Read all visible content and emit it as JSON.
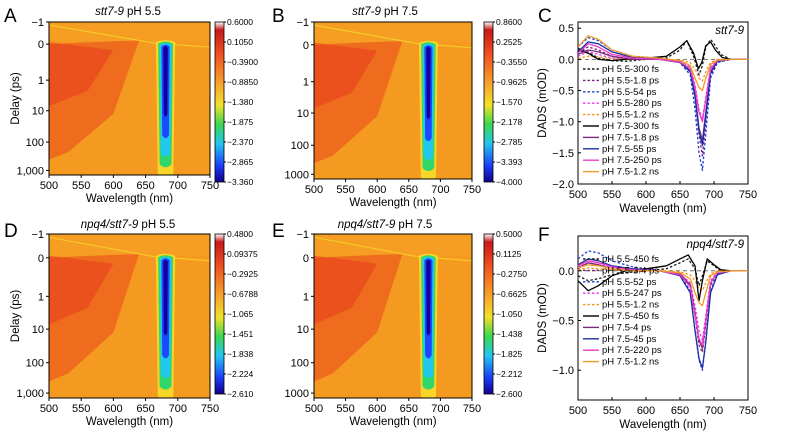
{
  "colors": {
    "hm_background": "#f59a20",
    "hm_red": "#e8361c",
    "hm_orange_mid": "#f7a72a",
    "hm_yellow": "#f5dd2a",
    "hm_green": "#30d66a",
    "hm_cyan": "#22c8ee",
    "hm_blue": "#1c48ff",
    "hm_navy": "#13009a"
  },
  "chart_data": [
    {
      "panel": "A",
      "type": "heatmap",
      "title_italic": "stt7-9",
      "title_rest": " pH 5.5",
      "xlabel": "Wavelength (nm)",
      "ylabel": "Delay (ps)",
      "x_ticks": [
        "500",
        "550",
        "600",
        "650",
        "700",
        "750"
      ],
      "y_ticks": [
        "−1",
        "0",
        "1",
        "10",
        "100",
        "1,000"
      ],
      "xlim": [
        500,
        750
      ],
      "ylim_ps": [
        -1,
        1900
      ],
      "colorbar_ticks": [
        "0.6000",
        "0.1050",
        "−0.3900",
        "−0.8850",
        "−1.380",
        "−1.875",
        "−2.370",
        "−2.865",
        "−3.360"
      ],
      "colorbar_range": [
        -3.36,
        0.6
      ]
    },
    {
      "panel": "B",
      "type": "heatmap",
      "title_italic": "stt7-9",
      "title_rest": " pH 7.5",
      "xlabel": "Wavelength (nm)",
      "ylabel": "",
      "x_ticks": [
        "500",
        "550",
        "600",
        "650",
        "700",
        "750"
      ],
      "y_ticks": [
        "−1",
        "0",
        "1",
        "10",
        "100",
        "1000"
      ],
      "xlim": [
        500,
        750
      ],
      "ylim_ps": [
        -1,
        1900
      ],
      "colorbar_ticks": [
        "0.8600",
        "0.2525",
        "−0.3550",
        "−0.9625",
        "−1.570",
        "−2.178",
        "−2.785",
        "−3.393",
        "−4.000"
      ],
      "colorbar_range": [
        -4.0,
        0.86
      ]
    },
    {
      "panel": "C",
      "type": "line",
      "title": "stt7-9",
      "xlabel": "Wavelength (nm)",
      "ylabel": "DADS (mOD)",
      "x_ticks": [
        "500",
        "550",
        "600",
        "650",
        "700",
        "750"
      ],
      "y_ticks": [
        "0.5",
        "0.0",
        "−0.5",
        "−1.0",
        "−1.5",
        "−2.0"
      ],
      "xlim": [
        500,
        750
      ],
      "ylim": [
        -2.0,
        0.6
      ],
      "series": [
        {
          "name": "pH 5.5-300 fs",
          "color": "#1a1a1a",
          "dashed": true,
          "x": [
            500,
            515,
            530,
            550,
            570,
            600,
            630,
            650,
            660,
            670,
            678,
            683,
            688,
            695,
            700,
            710,
            725,
            750
          ],
          "y": [
            0.18,
            0.12,
            0.02,
            -0.02,
            -0.03,
            0.0,
            0.02,
            0.15,
            0.3,
            0.05,
            -0.25,
            -0.1,
            0.2,
            0.32,
            0.25,
            0.08,
            0.0,
            0.0
          ]
        },
        {
          "name": "pH 5.5-1.8 ps",
          "color": "#7a1f7a",
          "dashed": true,
          "x": [
            500,
            515,
            530,
            550,
            580,
            620,
            650,
            665,
            672,
            678,
            683,
            688,
            695,
            705,
            725,
            750
          ],
          "y": [
            0.12,
            0.2,
            0.15,
            0.05,
            0.0,
            0.0,
            -0.05,
            -0.2,
            -0.6,
            -1.2,
            -1.55,
            -1.0,
            -0.25,
            -0.03,
            0.0,
            0.0
          ]
        },
        {
          "name": "pH 5.5-54 ps",
          "color": "#1f3fd4",
          "dashed": true,
          "x": [
            500,
            515,
            530,
            550,
            580,
            620,
            650,
            665,
            672,
            678,
            683,
            688,
            695,
            705,
            725,
            750
          ],
          "y": [
            0.2,
            0.35,
            0.3,
            0.15,
            0.05,
            0.02,
            -0.05,
            -0.25,
            -0.8,
            -1.5,
            -1.78,
            -1.2,
            -0.3,
            -0.05,
            0.0,
            0.0
          ]
        },
        {
          "name": "pH 5.5-280 ps",
          "color": "#e83ee0",
          "dashed": true,
          "x": [
            500,
            515,
            530,
            550,
            580,
            620,
            650,
            665,
            672,
            678,
            683,
            688,
            695,
            705,
            725,
            750
          ],
          "y": [
            0.05,
            0.12,
            0.08,
            0.02,
            0.0,
            0.0,
            -0.03,
            -0.12,
            -0.4,
            -0.8,
            -0.95,
            -0.6,
            -0.12,
            -0.02,
            0.0,
            0.0
          ]
        },
        {
          "name": "pH 5.5-1.2 ns",
          "color": "#f0951c",
          "dashed": true,
          "x": [
            500,
            515,
            530,
            550,
            580,
            620,
            650,
            665,
            672,
            678,
            683,
            688,
            695,
            705,
            725,
            750
          ],
          "y": [
            0.02,
            0.05,
            0.04,
            0.01,
            0.0,
            0.0,
            -0.01,
            -0.05,
            -0.15,
            -0.3,
            -0.35,
            -0.2,
            -0.05,
            0.0,
            0.0,
            0.0
          ]
        },
        {
          "name": "pH 7.5-300 fs",
          "color": "#000000",
          "dashed": false,
          "x": [
            500,
            515,
            530,
            550,
            570,
            600,
            630,
            650,
            660,
            670,
            677,
            682,
            688,
            695,
            702,
            712,
            725,
            750
          ],
          "y": [
            0.15,
            0.1,
            0.0,
            -0.02,
            0.0,
            0.02,
            0.05,
            0.2,
            0.3,
            0.1,
            -0.15,
            -0.05,
            0.22,
            0.28,
            0.15,
            0.03,
            0.0,
            0.0
          ]
        },
        {
          "name": "pH 7.5-1.8 ps",
          "color": "#7b2a7f",
          "dashed": false,
          "x": [
            500,
            515,
            530,
            550,
            580,
            620,
            650,
            665,
            672,
            678,
            683,
            688,
            695,
            705,
            725,
            750
          ],
          "y": [
            0.08,
            0.15,
            0.12,
            0.05,
            0.0,
            0.0,
            -0.05,
            -0.18,
            -0.55,
            -1.1,
            -1.3,
            -0.85,
            -0.2,
            -0.02,
            0.0,
            0.0
          ]
        },
        {
          "name": "pH 7.5-55 ps",
          "color": "#1a2fa8",
          "dashed": false,
          "x": [
            500,
            515,
            530,
            550,
            580,
            620,
            650,
            665,
            672,
            678,
            683,
            688,
            695,
            705,
            725,
            750
          ],
          "y": [
            0.12,
            0.28,
            0.25,
            0.12,
            0.03,
            0.0,
            -0.04,
            -0.2,
            -0.6,
            -1.15,
            -1.38,
            -0.9,
            -0.22,
            -0.03,
            0.0,
            0.0
          ]
        },
        {
          "name": "pH 7.5-250 ps",
          "color": "#f03cc8",
          "dashed": false,
          "x": [
            500,
            515,
            530,
            550,
            580,
            620,
            650,
            665,
            672,
            678,
            683,
            688,
            695,
            705,
            725,
            750
          ],
          "y": [
            0.1,
            0.25,
            0.2,
            0.08,
            0.02,
            0.0,
            -0.04,
            -0.15,
            -0.45,
            -0.85,
            -1.0,
            -0.65,
            -0.15,
            -0.02,
            0.0,
            0.0
          ]
        },
        {
          "name": "pH 7.5-1.2 ns",
          "color": "#f09a28",
          "dashed": false,
          "x": [
            500,
            515,
            530,
            550,
            580,
            620,
            650,
            665,
            672,
            678,
            683,
            688,
            695,
            705,
            725,
            750
          ],
          "y": [
            0.2,
            0.38,
            0.32,
            0.15,
            0.05,
            0.02,
            -0.02,
            -0.1,
            -0.3,
            -0.45,
            -0.5,
            -0.3,
            -0.08,
            -0.01,
            0.0,
            0.0
          ]
        }
      ]
    },
    {
      "panel": "D",
      "type": "heatmap",
      "title_italic": "npq4/stt7-9",
      "title_rest": " pH 5.5",
      "xlabel": "Wavelength (nm)",
      "ylabel": "Delay (ps)",
      "x_ticks": [
        "500",
        "550",
        "600",
        "650",
        "700",
        "750"
      ],
      "y_ticks": [
        "−1",
        "0",
        "1",
        "10",
        "100",
        "1,000"
      ],
      "xlim": [
        500,
        750
      ],
      "ylim_ps": [
        -1,
        1900
      ],
      "colorbar_ticks": [
        "0.4800",
        "0.09375",
        "−0.2925",
        "−0.6788",
        "−1.065",
        "−1.451",
        "−1.838",
        "−2.224",
        "−2.610"
      ],
      "colorbar_range": [
        -2.61,
        0.48
      ]
    },
    {
      "panel": "E",
      "type": "heatmap",
      "title_italic": "npq4/stt7-9",
      "title_rest": " pH 7.5",
      "xlabel": "Wavelength (nm)",
      "ylabel": "",
      "x_ticks": [
        "500",
        "550",
        "600",
        "650",
        "700",
        "750"
      ],
      "y_ticks": [
        "−1",
        "0",
        "1",
        "10",
        "100",
        "1000"
      ],
      "xlim": [
        500,
        750
      ],
      "ylim_ps": [
        -1,
        1900
      ],
      "colorbar_ticks": [
        "0.5000",
        "0.1125",
        "−0.2750",
        "−0.6625",
        "−1.050",
        "−1.438",
        "−1.825",
        "−2.212",
        "−2.600"
      ],
      "colorbar_range": [
        -2.6,
        0.5
      ]
    },
    {
      "panel": "F",
      "type": "line",
      "title": "npq4/stt7-9",
      "xlabel": "Wavelength (nm)",
      "ylabel": "DADS (mOD)",
      "x_ticks": [
        "500",
        "550",
        "600",
        "650",
        "700",
        "750"
      ],
      "y_ticks": [
        "0.0",
        "−0.5",
        "−1.0"
      ],
      "xlim": [
        500,
        750
      ],
      "ylim": [
        -1.3,
        0.35
      ],
      "series": [
        {
          "name": "pH 5.5-450 fs",
          "color": "#1a1a1a",
          "dashed": true,
          "x": [
            500,
            515,
            530,
            550,
            570,
            600,
            630,
            650,
            662,
            672,
            678,
            683,
            690,
            700,
            710,
            725,
            750
          ],
          "y": [
            -0.05,
            -0.1,
            -0.08,
            -0.04,
            -0.02,
            0.0,
            0.02,
            0.08,
            0.12,
            0.02,
            -0.15,
            -0.05,
            0.1,
            0.05,
            0.0,
            0.0,
            0.0
          ]
        },
        {
          "name": "pH 5.5-3.4 ps",
          "color": "#7a1f7a",
          "dashed": true,
          "x": [
            500,
            515,
            530,
            550,
            580,
            620,
            650,
            665,
            672,
            678,
            683,
            688,
            695,
            705,
            725,
            750
          ],
          "y": [
            0.02,
            0.08,
            0.06,
            0.02,
            0.0,
            0.0,
            -0.03,
            -0.15,
            -0.45,
            -0.75,
            -0.82,
            -0.55,
            -0.15,
            -0.02,
            0.0,
            0.0
          ]
        },
        {
          "name": "pH 5.5-52 ps",
          "color": "#1f3fd4",
          "dashed": true,
          "x": [
            500,
            515,
            530,
            550,
            580,
            620,
            650,
            665,
            672,
            678,
            683,
            688,
            695,
            705,
            725,
            750
          ],
          "y": [
            0.12,
            0.2,
            0.18,
            0.1,
            0.04,
            0.0,
            -0.04,
            -0.2,
            -0.6,
            -0.9,
            -1.0,
            -0.7,
            -0.2,
            -0.03,
            0.0,
            0.0
          ]
        },
        {
          "name": "pH 5.5-247 ps",
          "color": "#e83ee0",
          "dashed": true,
          "x": [
            500,
            515,
            530,
            550,
            580,
            620,
            650,
            665,
            672,
            678,
            683,
            688,
            695,
            705,
            725,
            750
          ],
          "y": [
            0.04,
            0.1,
            0.08,
            0.03,
            0.0,
            0.0,
            -0.03,
            -0.12,
            -0.35,
            -0.6,
            -0.7,
            -0.45,
            -0.1,
            -0.01,
            0.0,
            0.0
          ]
        },
        {
          "name": "pH 5.5-1.2 ns",
          "color": "#f0951c",
          "dashed": true,
          "x": [
            500,
            515,
            530,
            550,
            580,
            620,
            650,
            665,
            672,
            678,
            683,
            688,
            695,
            705,
            725,
            750
          ],
          "y": [
            0.01,
            0.03,
            0.02,
            0.01,
            0.0,
            0.0,
            -0.01,
            -0.04,
            -0.1,
            -0.18,
            -0.2,
            -0.12,
            -0.03,
            0.0,
            0.0,
            0.0
          ]
        },
        {
          "name": "pH 7.5-450 fs",
          "color": "#000000",
          "dashed": false,
          "x": [
            500,
            515,
            530,
            550,
            570,
            600,
            630,
            650,
            662,
            672,
            678,
            683,
            690,
            700,
            710,
            725,
            750
          ],
          "y": [
            -0.1,
            -0.2,
            -0.15,
            -0.05,
            0.0,
            0.02,
            0.05,
            0.12,
            0.16,
            0.05,
            -0.3,
            -0.1,
            0.12,
            0.06,
            0.01,
            0.0,
            0.0
          ]
        },
        {
          "name": "pH 7.5-4 ps",
          "color": "#7b2a7f",
          "dashed": false,
          "x": [
            500,
            515,
            530,
            550,
            580,
            620,
            650,
            665,
            672,
            678,
            683,
            688,
            695,
            705,
            725,
            750
          ],
          "y": [
            0.03,
            0.08,
            0.06,
            0.02,
            0.0,
            0.0,
            -0.03,
            -0.14,
            -0.42,
            -0.7,
            -0.78,
            -0.5,
            -0.12,
            -0.02,
            0.0,
            0.0
          ]
        },
        {
          "name": "pH 7.5-45 ps",
          "color": "#1a2fa8",
          "dashed": false,
          "x": [
            500,
            515,
            530,
            550,
            580,
            620,
            650,
            665,
            672,
            678,
            683,
            688,
            695,
            705,
            725,
            750
          ],
          "y": [
            0.06,
            0.12,
            0.1,
            0.05,
            0.02,
            0.0,
            -0.05,
            -0.22,
            -0.6,
            -0.88,
            -0.98,
            -0.72,
            -0.22,
            -0.04,
            0.0,
            0.0
          ]
        },
        {
          "name": "pH 7.5-220 ps",
          "color": "#f03cc8",
          "dashed": false,
          "x": [
            500,
            515,
            530,
            550,
            580,
            620,
            650,
            665,
            672,
            678,
            683,
            688,
            695,
            705,
            725,
            750
          ],
          "y": [
            0.05,
            0.1,
            0.08,
            0.04,
            0.01,
            0.0,
            -0.04,
            -0.16,
            -0.45,
            -0.68,
            -0.75,
            -0.5,
            -0.12,
            -0.02,
            0.0,
            0.0
          ]
        },
        {
          "name": "pH 7.5-1.2 ns",
          "color": "#f09a28",
          "dashed": false,
          "x": [
            500,
            515,
            530,
            550,
            580,
            620,
            650,
            665,
            672,
            678,
            683,
            688,
            695,
            705,
            725,
            750
          ],
          "y": [
            0.03,
            0.06,
            0.05,
            0.02,
            0.0,
            0.0,
            -0.02,
            -0.08,
            -0.22,
            -0.32,
            -0.35,
            -0.22,
            -0.05,
            -0.01,
            0.0,
            0.0
          ]
        }
      ]
    }
  ]
}
